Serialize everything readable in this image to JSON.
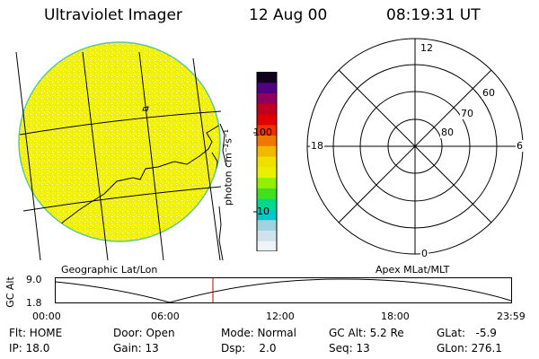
{
  "header": {
    "instrument": "Ultraviolet Imager",
    "date": "12 Aug 00",
    "time": "08:19:31 UT"
  },
  "geo_panel": {
    "label": "Geographic Lat/Lon"
  },
  "apex_panel": {
    "label": "Apex MLat/MLT",
    "mlt_labels": [
      "12",
      "18",
      "6",
      "0"
    ],
    "mlat_labels": [
      "60",
      "70",
      "80"
    ]
  },
  "colorbar": {
    "unit_label": "photon cm⁻²s⁻¹",
    "tick_labels": [
      "100",
      "10"
    ],
    "colors": [
      "#eef3f7",
      "#cfe3ec",
      "#9fd3e0",
      "#00c8c8",
      "#00d890",
      "#40e020",
      "#90f000",
      "#e8f000",
      "#f0e000",
      "#f0b800",
      "#f07800",
      "#f03000",
      "#e00000",
      "#c00020",
      "#900060",
      "#500080",
      "#100020"
    ]
  },
  "orbit_plot": {
    "ylabel": "GC Alt",
    "y_ticks": [
      "9.0",
      "1.8"
    ],
    "x_ticks": [
      "00:00",
      "06:00",
      "12:00",
      "18:00",
      "23:59"
    ],
    "current_time_marker": "08:19",
    "marker_color": "#cc0000"
  },
  "status": {
    "flt": "Flt: HOME",
    "ip": "IP: 18.0",
    "door": "Door: Open",
    "gain": "Gain: 13",
    "mode": "Mode: Normal",
    "dsp": "Dsp:    2.0",
    "gc_alt": "GC Alt: 5.2 Re",
    "seq": "Seq: 13",
    "glat": "GLat:   -5.9",
    "glon": "GLon: 276.1"
  }
}
